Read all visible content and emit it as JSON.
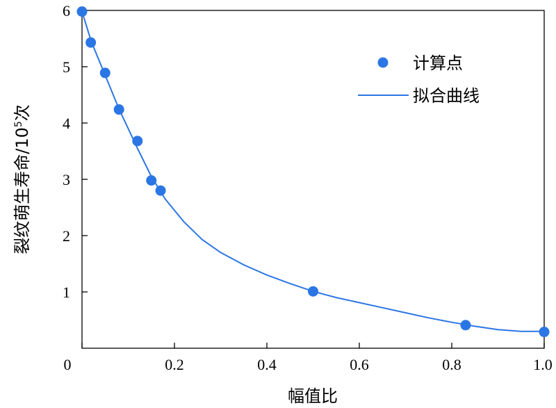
{
  "chart_data": {
    "type": "scatter",
    "xlabel": "幅值比",
    "ylabel": "裂纹萌生寿命/10",
    "ylabel_superscript": "5",
    "ylabel_suffix": "次",
    "xlim": [
      0,
      1.0
    ],
    "ylim": [
      0,
      6
    ],
    "x_ticks": [
      "0",
      "0.2",
      "0.4",
      "0.6",
      "0.8",
      "1.0"
    ],
    "y_ticks": [
      "1",
      "2",
      "3",
      "4",
      "5",
      "6"
    ],
    "grid": false,
    "legend_position": "top-right",
    "colors": {
      "points": "#2b76e5",
      "curve": "#2b76e5"
    },
    "series": [
      {
        "name": "计算点",
        "kind": "scatter",
        "x": [
          0.0,
          0.019,
          0.05,
          0.08,
          0.12,
          0.15,
          0.17,
          0.5,
          0.83,
          1.0
        ],
        "y": [
          5.98,
          5.43,
          4.89,
          4.24,
          3.68,
          2.98,
          2.8,
          1.01,
          0.41,
          0.29
        ]
      },
      {
        "name": "拟合曲线",
        "kind": "line",
        "x": [
          0.0,
          0.02,
          0.04,
          0.06,
          0.08,
          0.1,
          0.12,
          0.15,
          0.18,
          0.22,
          0.26,
          0.3,
          0.35,
          0.4,
          0.45,
          0.5,
          0.55,
          0.6,
          0.65,
          0.7,
          0.75,
          0.8,
          0.85,
          0.9,
          0.95,
          1.0
        ],
        "y": [
          5.98,
          5.45,
          5.05,
          4.65,
          4.25,
          3.9,
          3.55,
          3.05,
          2.65,
          2.25,
          1.93,
          1.7,
          1.48,
          1.3,
          1.15,
          1.01,
          0.9,
          0.81,
          0.72,
          0.63,
          0.54,
          0.46,
          0.39,
          0.33,
          0.3,
          0.3
        ]
      }
    ]
  }
}
